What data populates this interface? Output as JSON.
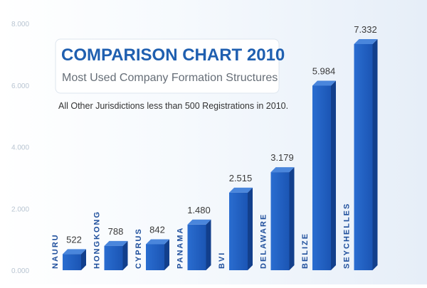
{
  "chart_data": {
    "type": "bar",
    "title": "COMPARISON CHART 2010",
    "subtitle": "Most Used Company Formation Structures",
    "annotation": "All Other Jurisdictions less than 500 Registrations in 2010.",
    "categories": [
      "NAURU",
      "HONGKONG",
      "CYPRUS",
      "PANAMA",
      "BVI",
      "DELAWARE",
      "BELIZE",
      "SEYCHELLES"
    ],
    "values": [
      522,
      788,
      842,
      1480,
      2515,
      3179,
      5984,
      7332
    ],
    "value_labels": [
      "522",
      "788",
      "842",
      "1.480",
      "2.515",
      "3.179",
      "5.984",
      "7.332"
    ],
    "y_ticks": [
      0,
      2000,
      4000,
      6000,
      8000
    ],
    "y_tick_labels": [
      "0.000",
      "2.000",
      "4.000",
      "6.000",
      "8.000"
    ],
    "ylim": [
      0,
      8000
    ],
    "grid": false,
    "legend": "none",
    "colors": {
      "bar": "#1f5fc4",
      "bar_side": "#123f8c",
      "bar_top": "#4a86dc",
      "title": "#1f5fb0",
      "category": "#1f4f9c"
    }
  }
}
